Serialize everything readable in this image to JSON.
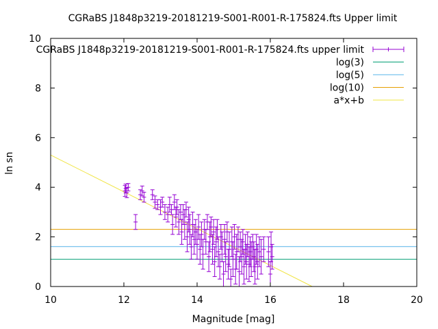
{
  "chart_data": {
    "type": "scatter",
    "title": "CGRaBS J1848p3219-20181219-S001-R001-R-175824.fts Upper limit",
    "xlabel": "Magnitude [mag]",
    "ylabel": "ln sn",
    "xlim": [
      10,
      20
    ],
    "ylim": [
      0,
      10
    ],
    "x_ticks": [
      "10",
      "12",
      "14",
      "16",
      "18",
      "20"
    ],
    "y_ticks": [
      "0",
      "2",
      "4",
      "6",
      "8",
      "10"
    ],
    "grid": false,
    "legend_position": "top-right",
    "colors": {
      "points": "#9400d3",
      "log3": "#009e73",
      "log5": "#56b4e9",
      "log10": "#e69f00",
      "fit": "#f0e442"
    },
    "series": [
      {
        "name": "CGRaBS J1848p3219-20181219-S001-R001-R-175824.fts upper limit",
        "points": [
          [
            12.03,
            3.85,
            0.22
          ],
          [
            12.05,
            3.95,
            0.18
          ],
          [
            12.08,
            3.78,
            0.2
          ],
          [
            12.12,
            4.0,
            0.15
          ],
          [
            12.32,
            2.6,
            0.3
          ],
          [
            12.45,
            3.7,
            0.2
          ],
          [
            12.5,
            3.85,
            0.2
          ],
          [
            12.55,
            3.6,
            0.2
          ],
          [
            12.78,
            3.7,
            0.2
          ],
          [
            12.85,
            3.4,
            0.25
          ],
          [
            12.92,
            3.3,
            0.2
          ],
          [
            13.0,
            3.2,
            0.3
          ],
          [
            13.05,
            3.4,
            0.2
          ],
          [
            13.12,
            3.0,
            0.3
          ],
          [
            13.2,
            2.9,
            0.3
          ],
          [
            13.25,
            3.3,
            0.3
          ],
          [
            13.3,
            3.1,
            0.2
          ],
          [
            13.33,
            2.5,
            0.4
          ],
          [
            13.38,
            3.4,
            0.3
          ],
          [
            13.42,
            2.8,
            0.4
          ],
          [
            13.45,
            3.2,
            0.3
          ],
          [
            13.5,
            2.6,
            0.5
          ],
          [
            13.55,
            3.0,
            0.3
          ],
          [
            13.58,
            2.2,
            0.5
          ],
          [
            13.62,
            2.9,
            0.4
          ],
          [
            13.66,
            2.5,
            0.6
          ],
          [
            13.7,
            3.1,
            0.3
          ],
          [
            13.73,
            2.0,
            0.6
          ],
          [
            13.77,
            2.7,
            0.5
          ],
          [
            13.8,
            2.3,
            0.6
          ],
          [
            13.84,
            1.6,
            0.5
          ],
          [
            13.88,
            2.5,
            0.5
          ],
          [
            13.92,
            1.9,
            0.6
          ],
          [
            13.96,
            2.2,
            0.5
          ],
          [
            14.0,
            1.7,
            0.6
          ],
          [
            14.04,
            2.4,
            0.5
          ],
          [
            14.08,
            1.5,
            0.6
          ],
          [
            14.12,
            2.1,
            0.5
          ],
          [
            14.16,
            1.3,
            0.6
          ],
          [
            14.2,
            2.3,
            0.4
          ],
          [
            14.24,
            1.8,
            0.5
          ],
          [
            14.28,
            2.6,
            0.3
          ],
          [
            14.32,
            1.2,
            0.6
          ],
          [
            14.35,
            2.0,
            0.6
          ],
          [
            14.38,
            2.4,
            0.4
          ],
          [
            14.42,
            1.5,
            0.6
          ],
          [
            14.45,
            2.2,
            0.5
          ],
          [
            14.48,
            1.0,
            0.6
          ],
          [
            14.52,
            1.8,
            0.6
          ],
          [
            14.55,
            2.3,
            0.4
          ],
          [
            14.58,
            1.4,
            0.6
          ],
          [
            14.62,
            0.8,
            0.5
          ],
          [
            14.65,
            2.0,
            0.5
          ],
          [
            14.68,
            1.6,
            0.6
          ],
          [
            14.72,
            0.5,
            0.5
          ],
          [
            14.75,
            1.9,
            0.6
          ],
          [
            14.78,
            1.2,
            0.6
          ],
          [
            14.82,
            2.2,
            0.4
          ],
          [
            14.85,
            0.9,
            0.6
          ],
          [
            14.88,
            1.5,
            0.7
          ],
          [
            14.92,
            0.3,
            0.4
          ],
          [
            14.95,
            1.8,
            0.6
          ],
          [
            14.98,
            1.1,
            0.7
          ],
          [
            15.02,
            2.0,
            0.5
          ],
          [
            15.05,
            0.7,
            0.6
          ],
          [
            15.08,
            1.4,
            0.7
          ],
          [
            15.12,
            1.9,
            0.5
          ],
          [
            15.15,
            0.6,
            0.6
          ],
          [
            15.18,
            1.6,
            0.6
          ],
          [
            15.22,
            1.2,
            0.7
          ],
          [
            15.25,
            1.8,
            0.5
          ],
          [
            15.28,
            0.8,
            0.7
          ],
          [
            15.32,
            1.5,
            0.6
          ],
          [
            15.35,
            1.0,
            0.7
          ],
          [
            15.38,
            1.7,
            0.5
          ],
          [
            15.42,
            0.9,
            0.7
          ],
          [
            15.45,
            1.4,
            0.6
          ],
          [
            15.48,
            1.1,
            0.7
          ],
          [
            15.52,
            1.6,
            0.5
          ],
          [
            15.55,
            1.2,
            0.6
          ],
          [
            15.58,
            0.8,
            0.7
          ],
          [
            15.62,
            1.5,
            0.6
          ],
          [
            15.65,
            1.0,
            0.7
          ],
          [
            15.7,
            1.4,
            0.6
          ],
          [
            15.75,
            1.2,
            0.7
          ],
          [
            15.82,
            1.5,
            0.5
          ],
          [
            15.95,
            1.4,
            0.6
          ],
          [
            16.0,
            0.5,
            0.5
          ],
          [
            16.02,
            1.6,
            0.6
          ],
          [
            16.05,
            1.2,
            0.5
          ]
        ]
      },
      {
        "name": "log(3)",
        "value": 1.0986
      },
      {
        "name": "log(5)",
        "value": 1.6094
      },
      {
        "name": "log(10)",
        "value": 2.3026
      },
      {
        "name": "a*x+b",
        "slope": -0.742,
        "intercept": 12.72
      }
    ]
  }
}
